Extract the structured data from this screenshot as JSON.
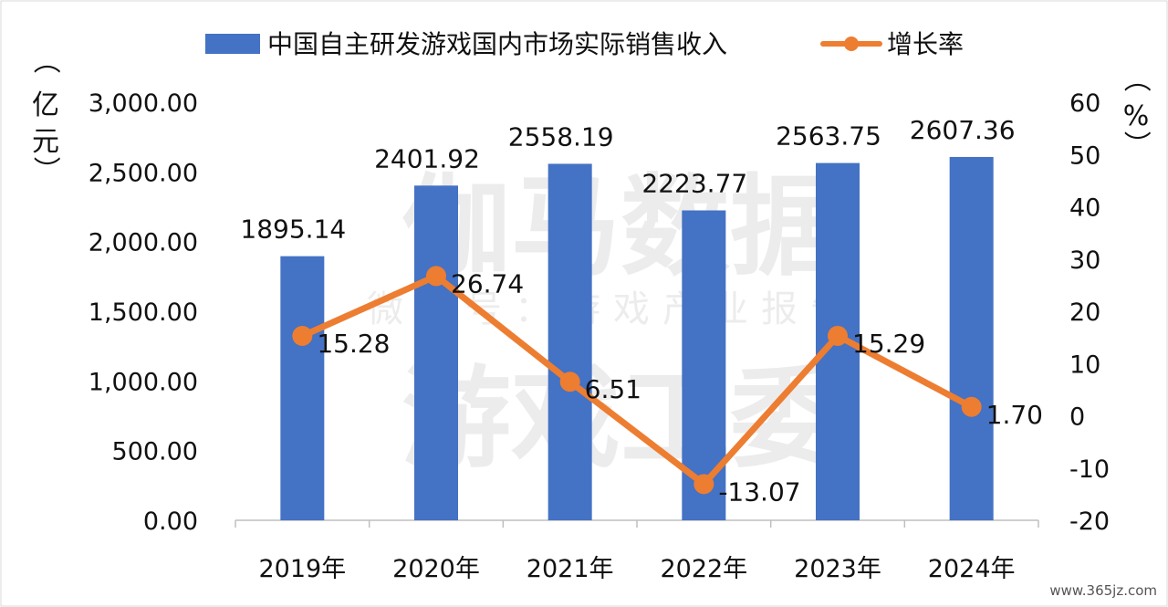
{
  "watermark": {
    "line1": "伽马数据",
    "line2": "微信号：游戏产业报告",
    "line3": "游戏工委",
    "corner": "www.365jz.com"
  },
  "units": {
    "left": [
      "（",
      "亿",
      "元",
      "）"
    ],
    "right": [
      "（",
      "%",
      "）"
    ]
  },
  "chart_data": {
    "type": "bar",
    "categories": [
      "2019年",
      "2020年",
      "2021年",
      "2022年",
      "2023年",
      "2024年"
    ],
    "series": [
      {
        "name": "中国自主研发游戏国内市场实际销售收入",
        "type": "bar",
        "axis": "left",
        "color": "#4472C4",
        "values": [
          1895.14,
          2401.92,
          2558.19,
          2223.77,
          2563.75,
          2607.36
        ],
        "labels": [
          "1895.14",
          "2401.92",
          "2558.19",
          "2223.77",
          "2563.75",
          "2607.36"
        ]
      },
      {
        "name": "增长率",
        "type": "line",
        "axis": "right",
        "color": "#ED7D31",
        "values": [
          15.28,
          26.74,
          6.51,
          -13.07,
          15.29,
          1.7
        ],
        "labels": [
          "15.28",
          "26.74",
          "6.51",
          "-13.07",
          "15.29",
          "1.70"
        ]
      }
    ],
    "y_left": {
      "ylim": [
        0,
        3000
      ],
      "ticks": [
        0,
        500,
        1000,
        1500,
        2000,
        2500,
        3000
      ],
      "tick_labels": [
        "0.00",
        "500.00",
        "1,000.00",
        "1,500.00",
        "2,000.00",
        "2,500.00",
        "3,000.00"
      ]
    },
    "y_right": {
      "ylim": [
        -20,
        60
      ],
      "ticks": [
        -20,
        -10,
        0,
        10,
        20,
        30,
        40,
        50,
        60
      ],
      "tick_labels": [
        "-20",
        "-10",
        "0",
        "10",
        "20",
        "30",
        "40",
        "50",
        "60"
      ]
    },
    "grid": false,
    "legend": "top"
  }
}
